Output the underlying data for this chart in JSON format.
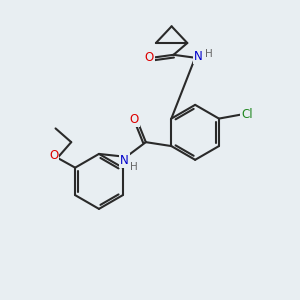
{
  "bg_color": "#e8eef2",
  "bond_color": "#2a2a2a",
  "atom_colors": {
    "O": "#dd0000",
    "N": "#0000cc",
    "Cl": "#228822",
    "H": "#666666",
    "C": "#2a2a2a"
  },
  "figsize": [
    3.0,
    3.0
  ],
  "dpi": 100
}
